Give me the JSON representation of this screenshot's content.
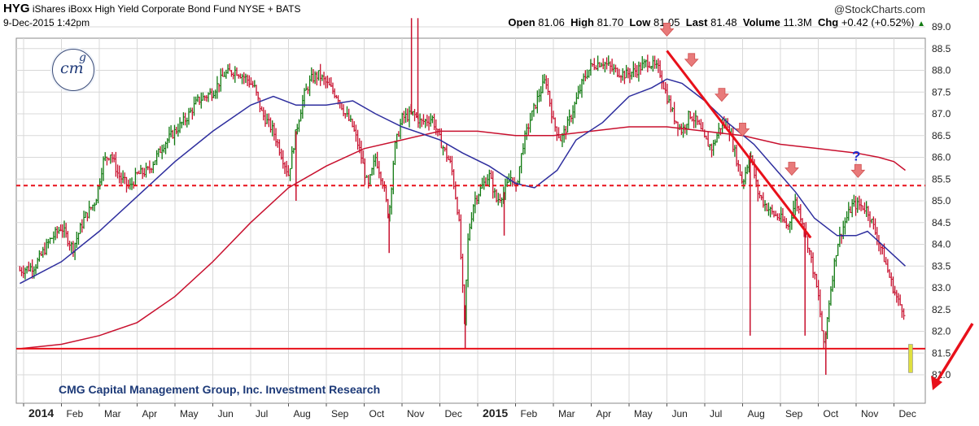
{
  "header": {
    "symbol": "HYG",
    "name": "iShares iBoxx High Yield Corporate Bond Fund",
    "exchange": "NYSE + BATS",
    "datetime": "9-Dec-2015 1:42pm",
    "source": "@StockCharts.com",
    "open_label": "Open",
    "open": "81.06",
    "high_label": "High",
    "high": "81.70",
    "low_label": "Low",
    "low": "81.05",
    "last_label": "Last",
    "last": "81.48",
    "volume_label": "Volume",
    "volume": "11.3M",
    "chg_label": "Chg",
    "chg": "+0.42 (+0.52%)"
  },
  "logo": {
    "text": "cm",
    "sup": "g"
  },
  "watermark": "CMG Capital Management Group, Inc. Investment Research",
  "annotation_question": "?",
  "colors": {
    "price_up": "#117a11",
    "price_down": "#c8102e",
    "ma50": "#2e2e9e",
    "ma200": "#c8102e",
    "support": "#e8101a",
    "trend": "#e8101a",
    "marker": "#e87a7a",
    "arrow": "#e8101a",
    "grid": "#d8d8d8"
  },
  "chart_data": {
    "type": "line",
    "title": "HYG iShares iBoxx High Yield Corporate Bond Fund NYSE + BATS",
    "ylim": [
      80.8,
      89.2
    ],
    "yticks": [
      "81.0",
      "81.5",
      "82.0",
      "82.5",
      "83.0",
      "83.5",
      "84.0",
      "84.5",
      "85.0",
      "85.5",
      "86.0",
      "86.5",
      "87.0",
      "87.5",
      "88.0",
      "88.5",
      "89.0"
    ],
    "xticks": [
      {
        "label": "2014",
        "bold": true,
        "m": 0
      },
      {
        "label": "Feb",
        "m": 1
      },
      {
        "label": "Mar",
        "m": 2
      },
      {
        "label": "Apr",
        "m": 3
      },
      {
        "label": "May",
        "m": 4
      },
      {
        "label": "Jun",
        "m": 5
      },
      {
        "label": "Jul",
        "m": 6
      },
      {
        "label": "Aug",
        "m": 7
      },
      {
        "label": "Sep",
        "m": 8
      },
      {
        "label": "Oct",
        "m": 9
      },
      {
        "label": "Nov",
        "m": 10
      },
      {
        "label": "Dec",
        "m": 11
      },
      {
        "label": "2015",
        "bold": true,
        "m": 12
      },
      {
        "label": "Feb",
        "m": 13
      },
      {
        "label": "Mar",
        "m": 14
      },
      {
        "label": "Apr",
        "m": 15
      },
      {
        "label": "May",
        "m": 16
      },
      {
        "label": "Jun",
        "m": 17
      },
      {
        "label": "Jul",
        "m": 18
      },
      {
        "label": "Aug",
        "m": 19
      },
      {
        "label": "Sep",
        "m": 20
      },
      {
        "label": "Oct",
        "m": 21
      },
      {
        "label": "Nov",
        "m": 22
      },
      {
        "label": "Dec",
        "m": 23
      }
    ],
    "x_months_end": 23.3,
    "price_path": [
      [
        -0.1,
        83.4
      ],
      [
        0.3,
        83.5
      ],
      [
        0.7,
        84.1
      ],
      [
        1.0,
        84.4
      ],
      [
        1.3,
        83.9
      ],
      [
        1.6,
        84.6
      ],
      [
        1.9,
        85.0
      ],
      [
        2.1,
        85.9
      ],
      [
        2.3,
        86.1
      ],
      [
        2.5,
        85.6
      ],
      [
        2.8,
        85.3
      ],
      [
        3.0,
        85.6
      ],
      [
        3.3,
        85.7
      ],
      [
        3.7,
        86.3
      ],
      [
        4.0,
        86.6
      ],
      [
        4.3,
        86.9
      ],
      [
        4.6,
        87.3
      ],
      [
        5.0,
        87.5
      ],
      [
        5.3,
        87.9
      ],
      [
        5.6,
        88.0
      ],
      [
        5.9,
        87.8
      ],
      [
        6.1,
        87.6
      ],
      [
        6.3,
        87.0
      ],
      [
        6.6,
        86.6
      ],
      [
        6.8,
        86.1
      ],
      [
        7.0,
        85.6
      ],
      [
        7.2,
        86.6
      ],
      [
        7.4,
        87.4
      ],
      [
        7.6,
        87.8
      ],
      [
        7.8,
        87.9
      ],
      [
        8.0,
        87.7
      ],
      [
        8.3,
        87.4
      ],
      [
        8.5,
        87.0
      ],
      [
        8.7,
        86.7
      ],
      [
        8.9,
        86.1
      ],
      [
        9.1,
        85.3
      ],
      [
        9.3,
        86.0
      ],
      [
        9.5,
        85.4
      ],
      [
        9.65,
        84.6
      ],
      [
        9.8,
        86.2
      ],
      [
        10.0,
        86.9
      ],
      [
        10.3,
        87.0
      ],
      [
        10.5,
        86.8
      ],
      [
        10.8,
        86.9
      ],
      [
        11.0,
        86.4
      ],
      [
        11.3,
        85.8
      ],
      [
        11.5,
        84.6
      ],
      [
        11.65,
        82.2
      ],
      [
        11.75,
        84.2
      ],
      [
        11.9,
        85.0
      ],
      [
        12.1,
        85.3
      ],
      [
        12.3,
        85.6
      ],
      [
        12.5,
        85.0
      ],
      [
        12.7,
        85.2
      ],
      [
        12.9,
        85.6
      ],
      [
        13.0,
        85.2
      ],
      [
        13.2,
        86.3
      ],
      [
        13.4,
        86.9
      ],
      [
        13.6,
        87.4
      ],
      [
        13.8,
        87.8
      ],
      [
        14.0,
        86.8
      ],
      [
        14.2,
        86.4
      ],
      [
        14.4,
        86.8
      ],
      [
        14.6,
        87.3
      ],
      [
        14.8,
        87.8
      ],
      [
        15.0,
        88.1
      ],
      [
        15.3,
        88.2
      ],
      [
        15.6,
        88.0
      ],
      [
        15.9,
        87.9
      ],
      [
        16.2,
        88.0
      ],
      [
        16.5,
        88.2
      ],
      [
        16.8,
        88.0
      ],
      [
        17.0,
        87.4
      ],
      [
        17.2,
        86.9
      ],
      [
        17.4,
        86.6
      ],
      [
        17.6,
        87.0
      ],
      [
        17.8,
        86.8
      ],
      [
        18.0,
        86.4
      ],
      [
        18.2,
        86.2
      ],
      [
        18.4,
        86.7
      ],
      [
        18.6,
        86.8
      ],
      [
        18.8,
        86.1
      ],
      [
        19.0,
        85.4
      ],
      [
        19.2,
        86.1
      ],
      [
        19.4,
        85.2
      ],
      [
        19.6,
        84.9
      ],
      [
        19.8,
        84.7
      ],
      [
        20.0,
        84.6
      ],
      [
        20.2,
        84.4
      ],
      [
        20.4,
        85.0
      ],
      [
        20.6,
        84.5
      ],
      [
        20.8,
        83.7
      ],
      [
        21.0,
        82.8
      ],
      [
        21.15,
        81.6
      ],
      [
        21.3,
        82.8
      ],
      [
        21.5,
        84.0
      ],
      [
        21.7,
        84.5
      ],
      [
        21.9,
        84.9
      ],
      [
        22.1,
        84.9
      ],
      [
        22.3,
        84.8
      ],
      [
        22.5,
        84.3
      ],
      [
        22.7,
        83.8
      ],
      [
        22.9,
        83.2
      ],
      [
        23.1,
        82.7
      ],
      [
        23.25,
        82.5
      ],
      [
        23.3,
        82.3
      ]
    ],
    "spikes": [
      {
        "m": 9.66,
        "lo": 83.8
      },
      {
        "m": 11.67,
        "lo": 81.6
      },
      {
        "m": 12.7,
        "lo": 84.2
      },
      {
        "m": 19.2,
        "lo": 81.9
      },
      {
        "m": 20.65,
        "lo": 81.9
      },
      {
        "m": 21.2,
        "lo": 81.0
      },
      {
        "m": 10.25,
        "hi": 89.2
      },
      {
        "m": 10.42,
        "hi": 89.2
      },
      {
        "m": 7.2,
        "lo": 85.0
      }
    ],
    "ma50": [
      [
        -0.1,
        83.1
      ],
      [
        1.0,
        83.6
      ],
      [
        2.0,
        84.3
      ],
      [
        3.0,
        85.1
      ],
      [
        4.0,
        85.9
      ],
      [
        5.0,
        86.6
      ],
      [
        6.0,
        87.2
      ],
      [
        6.6,
        87.4
      ],
      [
        7.2,
        87.2
      ],
      [
        8.0,
        87.2
      ],
      [
        8.7,
        87.3
      ],
      [
        9.3,
        87.0
      ],
      [
        10.0,
        86.7
      ],
      [
        11.0,
        86.4
      ],
      [
        11.6,
        86.1
      ],
      [
        12.3,
        85.8
      ],
      [
        13.0,
        85.4
      ],
      [
        13.5,
        85.3
      ],
      [
        14.1,
        85.7
      ],
      [
        14.6,
        86.4
      ],
      [
        15.3,
        86.8
      ],
      [
        16.0,
        87.4
      ],
      [
        16.6,
        87.6
      ],
      [
        17.0,
        87.8
      ],
      [
        17.4,
        87.7
      ],
      [
        18.0,
        87.3
      ],
      [
        18.6,
        86.8
      ],
      [
        19.3,
        86.3
      ],
      [
        20.0,
        85.6
      ],
      [
        20.4,
        85.2
      ],
      [
        20.9,
        84.6
      ],
      [
        21.5,
        84.2
      ],
      [
        22.0,
        84.2
      ],
      [
        22.3,
        84.3
      ],
      [
        22.8,
        83.9
      ],
      [
        23.3,
        83.5
      ]
    ],
    "ma200": [
      [
        -0.1,
        81.6
      ],
      [
        1.0,
        81.7
      ],
      [
        2.0,
        81.9
      ],
      [
        3.0,
        82.2
      ],
      [
        4.0,
        82.8
      ],
      [
        5.0,
        83.6
      ],
      [
        6.0,
        84.5
      ],
      [
        7.0,
        85.3
      ],
      [
        8.0,
        85.8
      ],
      [
        9.0,
        86.2
      ],
      [
        10.0,
        86.4
      ],
      [
        11.0,
        86.6
      ],
      [
        12.0,
        86.6
      ],
      [
        13.0,
        86.5
      ],
      [
        14.0,
        86.5
      ],
      [
        15.0,
        86.6
      ],
      [
        16.0,
        86.7
      ],
      [
        17.0,
        86.7
      ],
      [
        18.0,
        86.6
      ],
      [
        19.0,
        86.5
      ],
      [
        20.0,
        86.3
      ],
      [
        21.0,
        86.2
      ],
      [
        22.0,
        86.1
      ],
      [
        22.6,
        86.0
      ],
      [
        23.0,
        85.9
      ],
      [
        23.3,
        85.7
      ]
    ],
    "support_level": 81.6,
    "resistance_level": 85.35,
    "trendline": [
      [
        17.0,
        88.45
      ],
      [
        20.8,
        84.15
      ]
    ],
    "down_markers": [
      {
        "m": 17.0,
        "y": 88.9
      },
      {
        "m": 17.65,
        "y": 88.2
      },
      {
        "m": 18.45,
        "y": 87.4
      },
      {
        "m": 19.0,
        "y": 86.6
      },
      {
        "m": 20.3,
        "y": 85.7
      },
      {
        "m": 22.05,
        "y": 85.65
      }
    ],
    "question_at": {
      "m": 22.0,
      "y": 86.0
    }
  }
}
